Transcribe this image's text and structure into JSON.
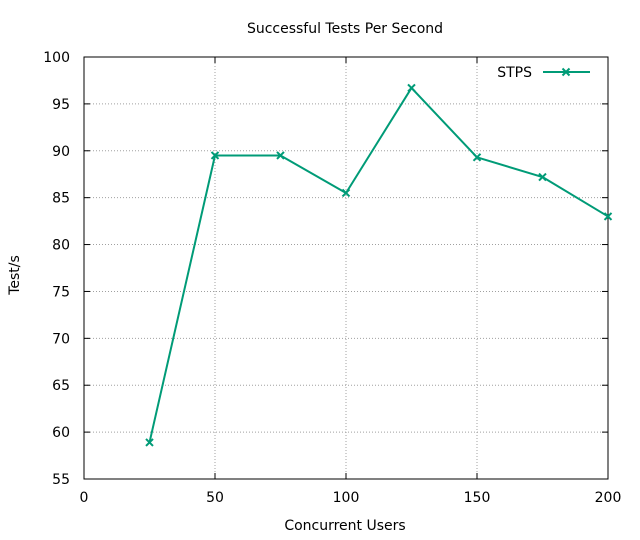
{
  "chart_data": {
    "type": "line",
    "title": "Successful Tests Per Second",
    "xlabel": "Concurrent Users",
    "ylabel": "Test/s",
    "xlim": [
      0,
      200
    ],
    "ylim": [
      55,
      100
    ],
    "xticks": [
      0,
      50,
      100,
      150,
      200
    ],
    "yticks": [
      55,
      60,
      65,
      70,
      75,
      80,
      85,
      90,
      95,
      100
    ],
    "grid": true,
    "legend_position": "top-right",
    "series": [
      {
        "name": "STPS",
        "color": "#009b77",
        "marker": "x",
        "x": [
          25,
          50,
          75,
          100,
          125,
          150,
          175,
          200
        ],
        "y": [
          58.9,
          89.5,
          89.5,
          85.5,
          96.7,
          89.3,
          87.2,
          83.0
        ]
      }
    ]
  }
}
